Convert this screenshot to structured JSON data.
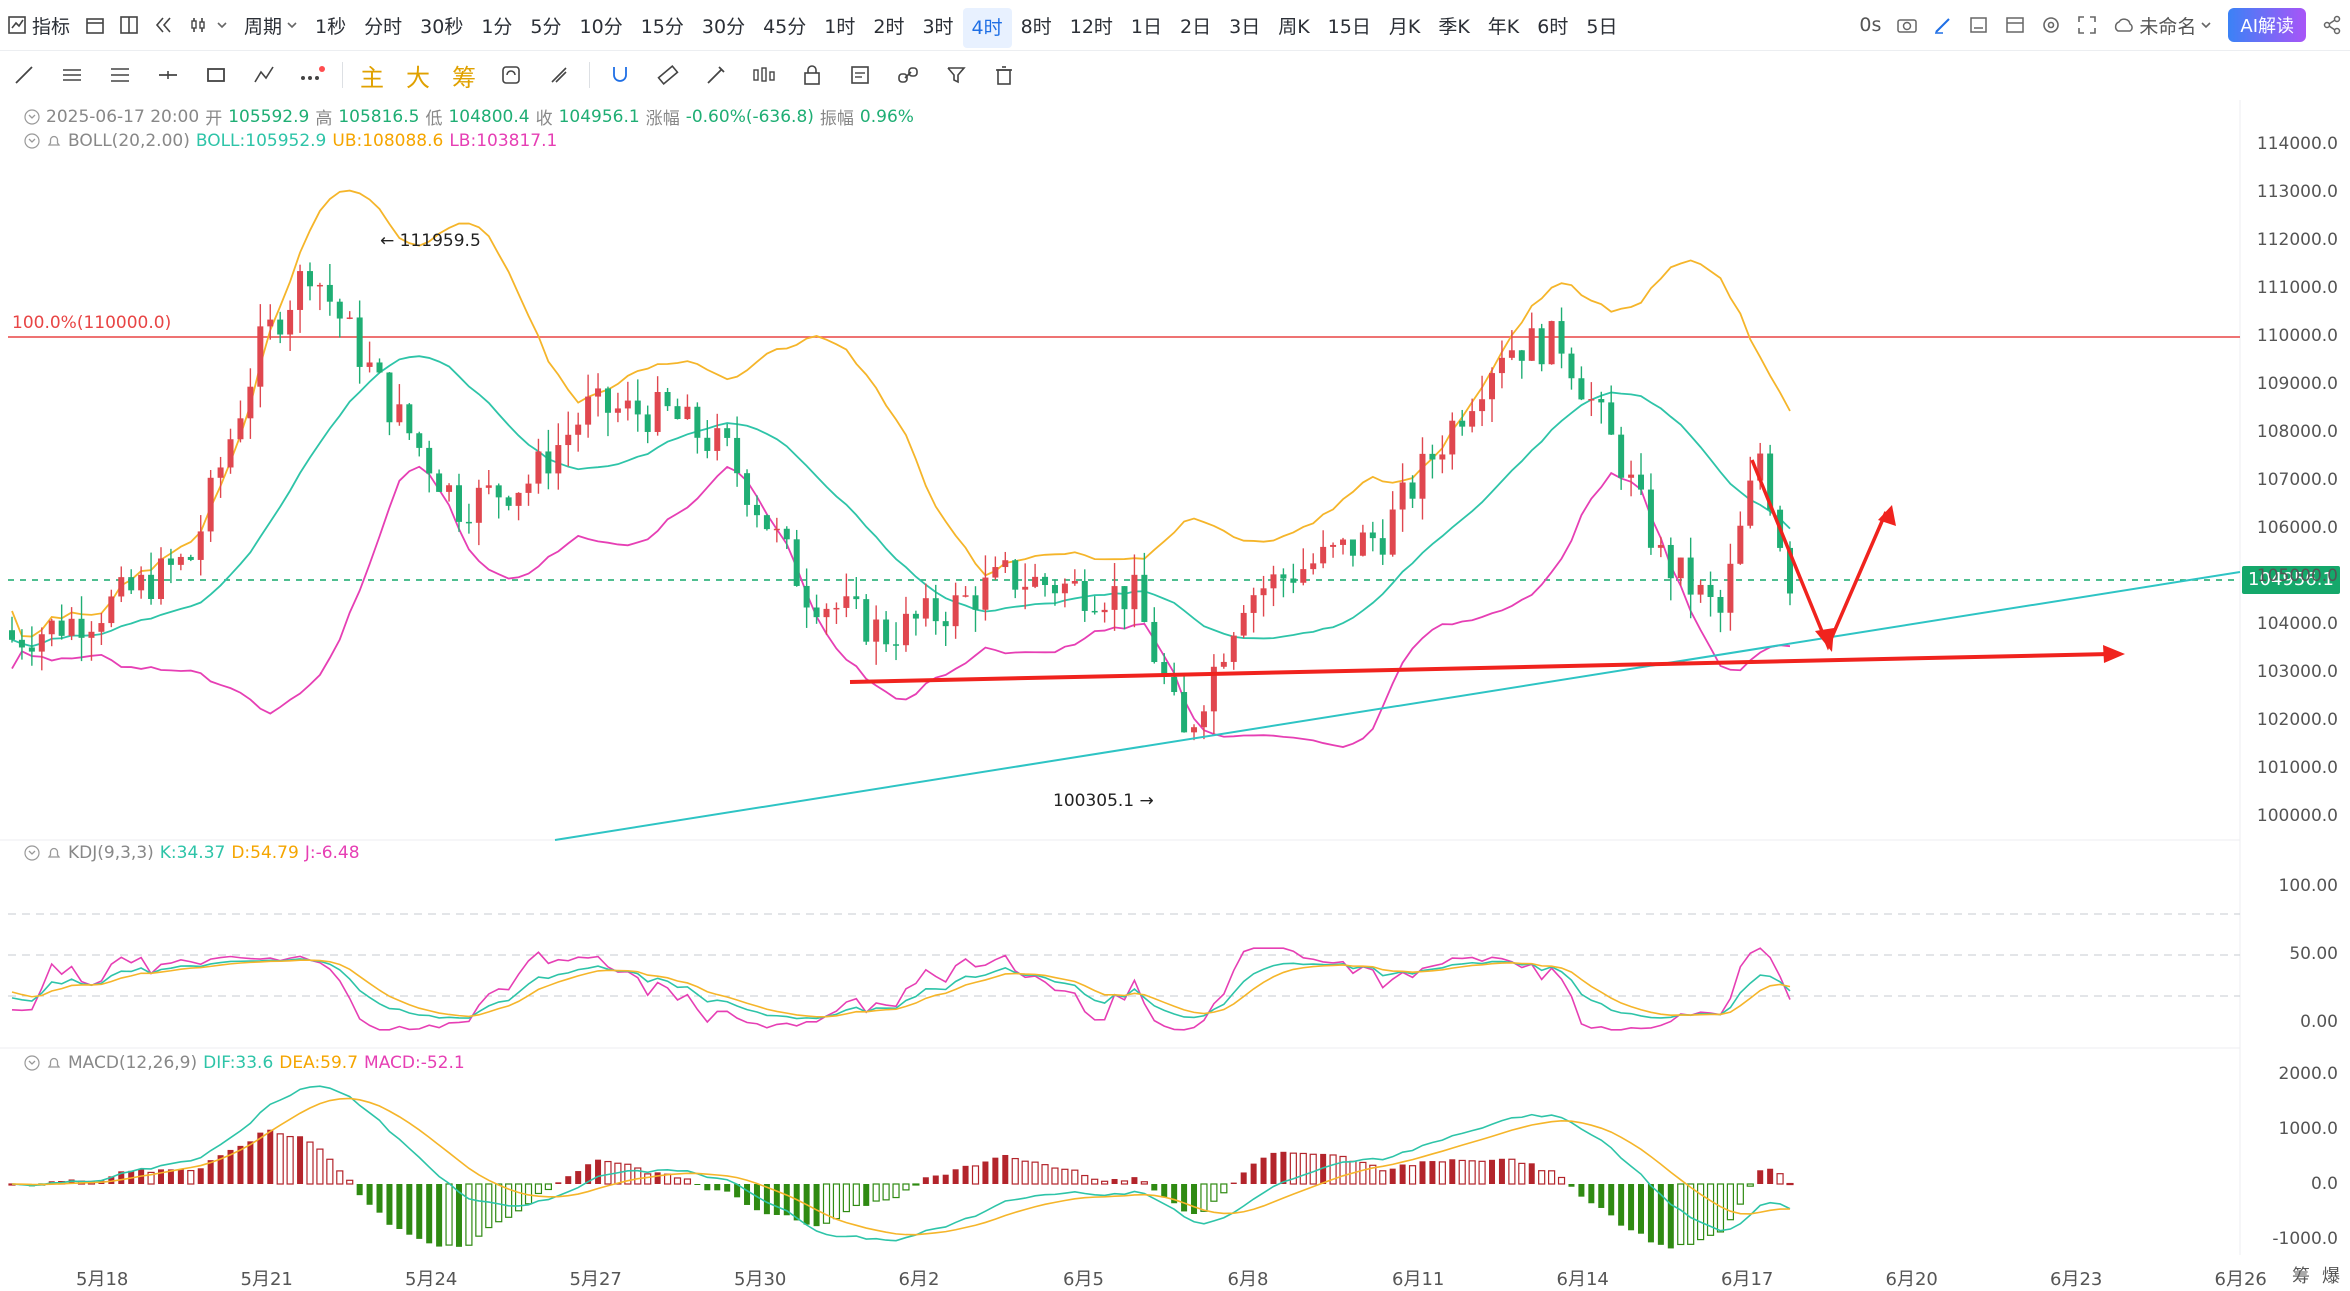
{
  "topbar": {
    "indicator_label": "指标",
    "period_menu_label": "周期",
    "periods": [
      "1秒",
      "分时",
      "30秒",
      "1分",
      "5分",
      "10分",
      "15分",
      "30分",
      "45分",
      "1时",
      "2时",
      "3时",
      "4时",
      "8时",
      "12时",
      "1日",
      "2日",
      "3日",
      "周K",
      "15日",
      "月K",
      "季K",
      "年K",
      "6时",
      "5日"
    ],
    "active_period": "4时",
    "timer": "0s",
    "layout_name": "未命名",
    "ai_button": "AI解读"
  },
  "toolbar": {
    "main_label": "主",
    "big_label": "大",
    "chip_label": "筹"
  },
  "ohlc": {
    "datetime": "2025-06-17 20:00",
    "open_label": "开",
    "open": "105592.9",
    "high_label": "高",
    "high": "105816.5",
    "low_label": "低",
    "low": "104800.4",
    "close_label": "收",
    "close": "104956.1",
    "change_label": "涨幅",
    "change": "-0.60%(-636.8)",
    "amplitude_label": "振幅",
    "amplitude": "0.96%"
  },
  "boll": {
    "name": "BOLL(20,2.00)",
    "mid_label": "BOLL:105952.9",
    "ub_label": "UB:108088.6",
    "lb_label": "LB:103817.1"
  },
  "kdj": {
    "name": "KDJ(9,3,3)",
    "k_label": "K:34.37",
    "d_label": "D:54.79",
    "j_label": "J:-6.48"
  },
  "macd": {
    "name": "MACD(12,26,9)",
    "dif_label": "DIF:33.6",
    "dea_label": "DEA:59.7",
    "macd_label": "MACD:-52.1"
  },
  "annotations": {
    "fib_line": "100.0%(110000.0)",
    "high_marker": "← 111959.5",
    "low_marker": "100305.1 →",
    "last_price": "104956.1"
  },
  "price_axis": [
    "114000.0",
    "113000.0",
    "112000.0",
    "111000.0",
    "110000.0",
    "109000.0",
    "108000.0",
    "107000.0",
    "106000.0",
    "105000.0",
    "104000.0",
    "103000.0",
    "102000.0",
    "101000.0",
    "100000.0"
  ],
  "kdj_axis": [
    "100.00",
    "50.00",
    "0.00"
  ],
  "macd_axis": [
    "2000.0",
    "1000.0",
    "0.0",
    "-1000.0"
  ],
  "time_axis": [
    "5月18",
    "5月21",
    "5月24",
    "5月27",
    "5月30",
    "6月2",
    "6月5",
    "6月8",
    "6月11",
    "6月14",
    "6月17",
    "6月20",
    "6月23",
    "6月26"
  ],
  "bottom_right": [
    "筹",
    "爆"
  ],
  "colors": {
    "up": "#e0474f",
    "down": "#1fae74",
    "boll_mid": "#2ec4a8",
    "boll_ub": "#f5b52a",
    "boll_lb": "#e63fb4",
    "fib": "#e84545",
    "trend": "#2ec4c4",
    "arrow": "#f0231e",
    "accent": "#1f6fe5"
  },
  "chart_data": [
    {
      "type": "candlestick",
      "title": "",
      "y_range": [
        99500,
        114500
      ],
      "x_categories": [
        "5月18",
        "5月21",
        "5月24",
        "5月27",
        "5月30",
        "6月2",
        "6月5",
        "6月8",
        "6月11",
        "6月14",
        "6月17"
      ],
      "approx_closes": [
        103700,
        111500,
        107000,
        108500,
        104500,
        104300,
        101600,
        106000,
        109500,
        104800,
        104956
      ],
      "high": 111959.5,
      "low": 100305.1,
      "last": 104956.1
    },
    {
      "type": "line",
      "title": "KDJ",
      "y_range": [
        0,
        100
      ],
      "series": [
        {
          "name": "K",
          "last": 34.37
        },
        {
          "name": "D",
          "last": 54.79
        },
        {
          "name": "J",
          "last": -6.48
        }
      ]
    },
    {
      "type": "bar",
      "title": "MACD",
      "y_range": [
        -1000,
        2000
      ],
      "series": [
        {
          "name": "DIF",
          "last": 33.6
        },
        {
          "name": "DEA",
          "last": 59.7
        },
        {
          "name": "MACD",
          "last": -52.1
        }
      ]
    }
  ]
}
